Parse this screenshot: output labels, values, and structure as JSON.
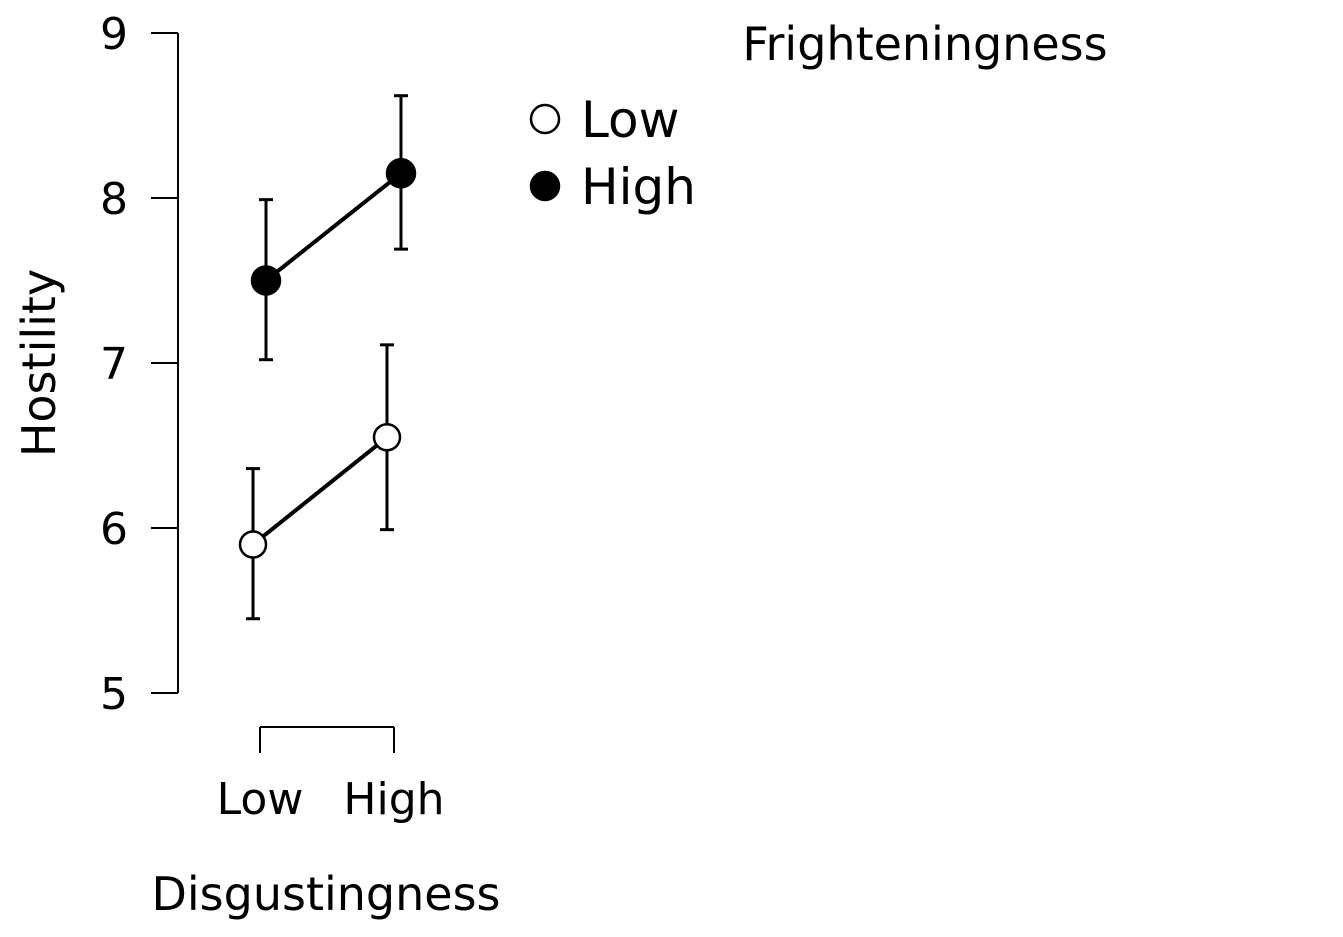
{
  "chart_data": {
    "type": "line",
    "xlabel": "Disgustingness",
    "ylabel": "Hostility",
    "categories": [
      "Low",
      "High"
    ],
    "ylim": [
      5,
      9
    ],
    "yticks": [
      "5",
      "6",
      "7",
      "8",
      "9"
    ],
    "grid": false,
    "legend": {
      "title": "Frighteningness",
      "placement": "top-right"
    },
    "series": [
      {
        "name": "Low",
        "marker": "open-circle",
        "color": "#000000",
        "fill": "#ffffff",
        "values": [
          5.9,
          6.55
        ],
        "error_lower": [
          5.45,
          5.99
        ],
        "error_upper": [
          6.36,
          7.11
        ]
      },
      {
        "name": "High",
        "marker": "filled-circle",
        "color": "#000000",
        "fill": "#000000",
        "values": [
          7.5,
          8.15
        ],
        "error_lower": [
          7.02,
          7.69
        ],
        "error_upper": [
          7.99,
          8.62
        ]
      }
    ]
  }
}
